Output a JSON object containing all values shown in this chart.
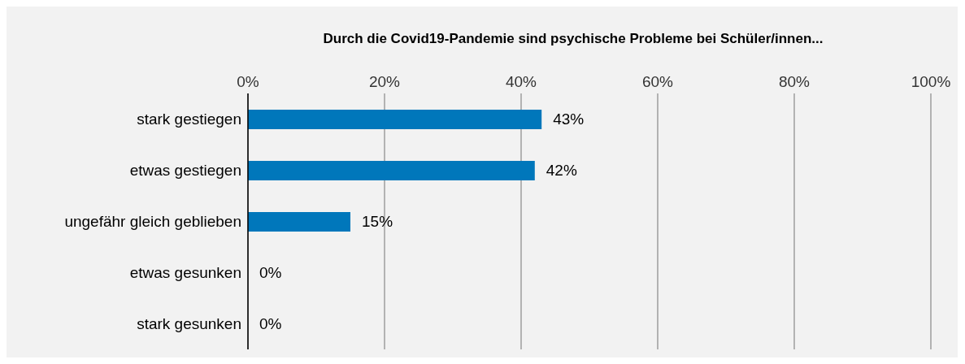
{
  "chart_data": {
    "type": "bar",
    "orientation": "horizontal",
    "title": "Durch die Covid19-Pandemie sind psychische Probleme bei Schüler/innen...",
    "categories": [
      "stark gestiegen",
      "etwas gestiegen",
      "ungefähr gleich geblieben",
      "etwas gesunken",
      "stark gesunken"
    ],
    "values": [
      43,
      42,
      15,
      0,
      0
    ],
    "value_labels": [
      "43%",
      "42%",
      "15%",
      "0%",
      "0%"
    ],
    "color": "#0077bb",
    "xlim": [
      0,
      100
    ],
    "xticks": [
      {
        "value": 0,
        "label": "0%"
      },
      {
        "value": 20,
        "label": "20%"
      },
      {
        "value": 40,
        "label": "40%"
      },
      {
        "value": 60,
        "label": "60%"
      },
      {
        "value": 80,
        "label": "80%"
      },
      {
        "value": 100,
        "label": "100%"
      }
    ],
    "grid": "x"
  }
}
